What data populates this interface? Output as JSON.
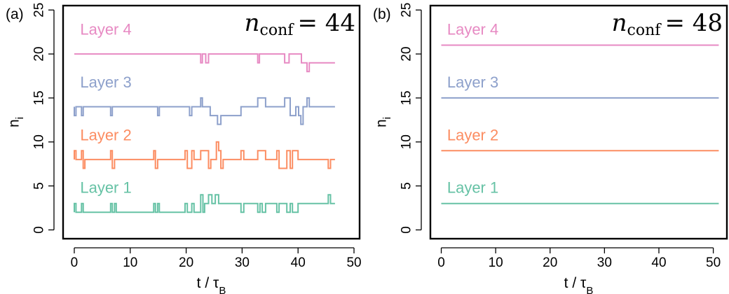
{
  "colors": {
    "layer1": "#66c2a5",
    "layer2": "#fc8d62",
    "layer3": "#8da0cb",
    "layer4": "#e78ac3",
    "axis": "#000000"
  },
  "chart_data": [
    {
      "type": "line",
      "panel_label": "(a)",
      "annotation": {
        "symbol": "n",
        "subscript": "conf",
        "equals": "= 44"
      },
      "xlabel": "t / τ",
      "xlabel_sub": "B",
      "ylabel": "n",
      "ylabel_sub": "i",
      "xlim": [
        -2,
        51
      ],
      "ylim": [
        -1,
        25.5
      ],
      "xticks": [
        0,
        10,
        20,
        30,
        40,
        50
      ],
      "yticks": [
        0,
        5,
        10,
        15,
        20,
        25
      ],
      "series": [
        {
          "name": "Layer 1",
          "label_pos": [
            0.3,
            4.2
          ],
          "x": [
            0,
            0,
            0.3,
            0.3,
            1.3,
            1.3,
            1.6,
            1.6,
            6.5,
            6.5,
            6.8,
            6.8,
            7.2,
            7.2,
            7.5,
            7.5,
            14.2,
            14.2,
            14.5,
            14.5,
            14.9,
            14.9,
            15.2,
            15.2,
            19.8,
            19.8,
            20.2,
            20.2,
            21.0,
            21.0,
            21.4,
            21.4,
            22.6,
            22.6,
            23.0,
            23.0,
            23.3,
            23.3,
            24.0,
            24.0,
            24.6,
            24.6,
            25.2,
            25.2,
            25.8,
            25.8,
            29.8,
            29.8,
            30.3,
            30.3,
            32.8,
            32.8,
            33.2,
            33.2,
            33.6,
            33.6,
            34.2,
            34.2,
            36.2,
            36.2,
            36.6,
            36.6,
            38.0,
            38.0,
            38.6,
            38.6,
            39.0,
            39.0,
            40.0,
            40.0,
            45.4,
            45.4,
            45.8,
            45.8,
            46.6
          ],
          "y": [
            2,
            3,
            3,
            2,
            2,
            3,
            3,
            2,
            2,
            3,
            3,
            2,
            2,
            3,
            3,
            2,
            2,
            3,
            3,
            2,
            2,
            3,
            3,
            2,
            2,
            3,
            3,
            2,
            2,
            3,
            3,
            2,
            2,
            4,
            4,
            2,
            2,
            3,
            3,
            4,
            4,
            3,
            3,
            4,
            4,
            3,
            3,
            2,
            2,
            3,
            3,
            2,
            2,
            3,
            3,
            2,
            2,
            3,
            3,
            2,
            2,
            3,
            3,
            2,
            2,
            3,
            3,
            2,
            2,
            3,
            3,
            4,
            4,
            3,
            3
          ]
        },
        {
          "name": "Layer 2",
          "label_pos": [
            0.3,
            10.2
          ],
          "x": [
            0,
            0,
            0.3,
            0.3,
            1.3,
            1.3,
            1.6,
            1.6,
            1.9,
            1.9,
            6.5,
            6.5,
            6.8,
            6.8,
            7.2,
            7.2,
            14.2,
            14.2,
            14.5,
            14.5,
            14.9,
            14.9,
            19.8,
            19.8,
            20.2,
            20.2,
            21.0,
            21.0,
            21.4,
            21.4,
            22.6,
            22.6,
            24.0,
            24.0,
            24.4,
            24.4,
            25.4,
            25.4,
            25.8,
            25.8,
            26.2,
            26.2,
            26.6,
            26.6,
            29.8,
            29.8,
            30.3,
            30.3,
            32.8,
            32.8,
            34.2,
            34.2,
            36.2,
            36.2,
            36.6,
            36.6,
            38.0,
            38.0,
            38.6,
            38.6,
            39.0,
            39.0,
            40.0,
            40.0,
            45.4,
            45.4,
            45.8,
            45.8,
            46.6
          ],
          "y": [
            8,
            9,
            9,
            8,
            8,
            9,
            9,
            7,
            7,
            8,
            8,
            9,
            9,
            7,
            7,
            8,
            8,
            9,
            9,
            7,
            7,
            8,
            8,
            9,
            9,
            7,
            7,
            9,
            9,
            8,
            8,
            9,
            9,
            7,
            7,
            8,
            8,
            10,
            10,
            9,
            9,
            7,
            7,
            8,
            8,
            9,
            9,
            8,
            8,
            9,
            9,
            8,
            8,
            9,
            9,
            7,
            7,
            9,
            9,
            7,
            7,
            9,
            9,
            8,
            8,
            7,
            7,
            8,
            8
          ]
        },
        {
          "name": "Layer 3",
          "label_pos": [
            0.3,
            16.2
          ],
          "x": [
            0,
            0,
            0.3,
            0.3,
            1.3,
            1.3,
            1.6,
            1.6,
            6.5,
            6.5,
            6.8,
            6.8,
            14.9,
            14.9,
            15.2,
            15.2,
            20.6,
            20.6,
            21.0,
            21.0,
            22.6,
            22.6,
            22.9,
            22.9,
            24.3,
            24.3,
            25.6,
            25.6,
            26.2,
            26.2,
            29.8,
            29.8,
            30.1,
            30.1,
            32.8,
            32.8,
            34.2,
            34.2,
            37.6,
            37.6,
            38.6,
            38.6,
            39.6,
            39.6,
            40.1,
            40.1,
            40.5,
            40.5,
            40.9,
            40.9,
            41.6,
            41.6,
            42.0,
            42.0,
            46.6
          ],
          "y": [
            14,
            13,
            13,
            14,
            14,
            13,
            13,
            14,
            14,
            13,
            13,
            14,
            14,
            13,
            13,
            14,
            14,
            13,
            13,
            14,
            14,
            15,
            15,
            14,
            14,
            13,
            13,
            12,
            12,
            13,
            13,
            14,
            14,
            14,
            14,
            15,
            15,
            14,
            14,
            15,
            15,
            13,
            13,
            14,
            14,
            13,
            13,
            12,
            12,
            14,
            14,
            15,
            15,
            14,
            14
          ]
        },
        {
          "name": "Layer 4",
          "label_pos": [
            0.3,
            22.2
          ],
          "x": [
            0,
            22.6,
            22.6,
            22.9,
            22.9,
            23.5,
            23.5,
            24.0,
            24.0,
            32.8,
            32.8,
            33.1,
            33.1,
            37.6,
            37.6,
            38.4,
            38.4,
            40.6,
            40.6,
            41.6,
            41.6,
            42.0,
            42.0,
            46.6
          ],
          "y": [
            20,
            20,
            19,
            19,
            20,
            20,
            19,
            19,
            20,
            20,
            19,
            19,
            20,
            20,
            19,
            19,
            20,
            20,
            19,
            19,
            18,
            18,
            19,
            19
          ]
        }
      ]
    },
    {
      "type": "line",
      "panel_label": "(b)",
      "annotation": {
        "symbol": "n",
        "subscript": "conf",
        "equals": "= 48"
      },
      "xlabel": "t / τ",
      "xlabel_sub": "B",
      "ylabel": "n",
      "ylabel_sub": "i",
      "xlim": [
        -2,
        52.5
      ],
      "ylim": [
        -1,
        25.5
      ],
      "xticks": [
        0,
        10,
        20,
        30,
        40,
        50
      ],
      "yticks": [
        0,
        5,
        10,
        15,
        20,
        25
      ],
      "series": [
        {
          "name": "Layer 1",
          "label_pos": [
            0.3,
            4.2
          ],
          "x": [
            0,
            51
          ],
          "y": [
            3,
            3
          ]
        },
        {
          "name": "Layer 2",
          "label_pos": [
            0.3,
            10.2
          ],
          "x": [
            0,
            51
          ],
          "y": [
            9,
            9
          ]
        },
        {
          "name": "Layer 3",
          "label_pos": [
            0.3,
            16.2
          ],
          "x": [
            0,
            51
          ],
          "y": [
            15,
            15
          ]
        },
        {
          "name": "Layer 4",
          "label_pos": [
            0.3,
            22.2
          ],
          "x": [
            0,
            51
          ],
          "y": [
            21,
            21
          ]
        }
      ]
    }
  ]
}
